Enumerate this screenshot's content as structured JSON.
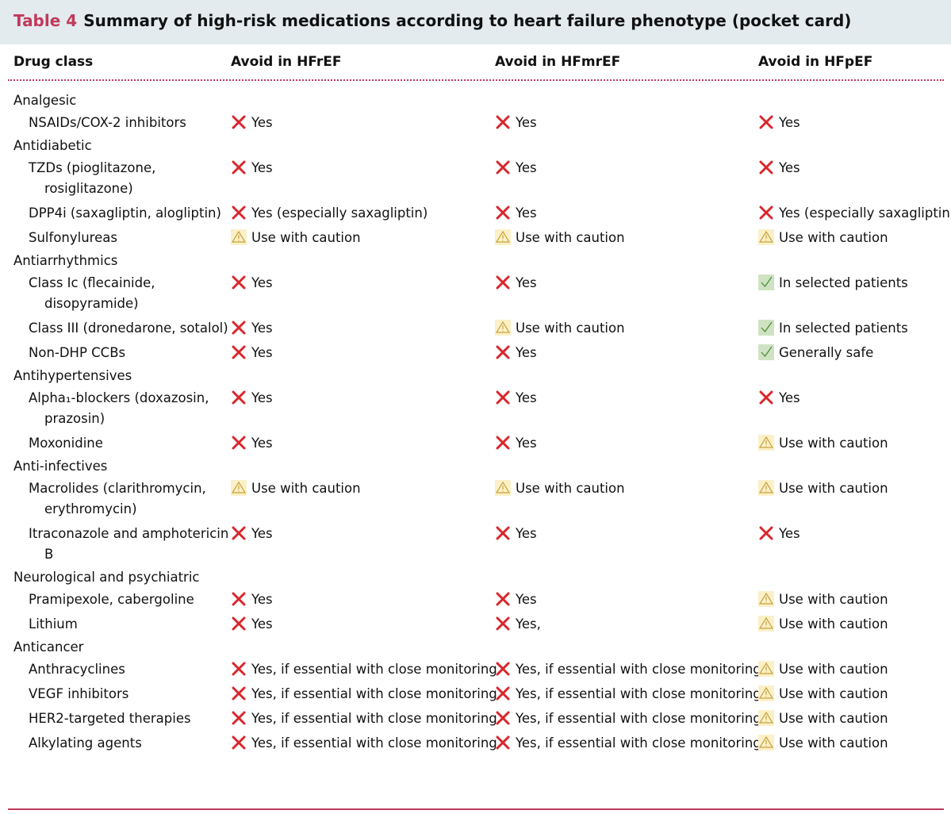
{
  "title": {
    "label": "Table 4",
    "text": "Summary of high-risk medications according to heart failure phenotype (pocket card)"
  },
  "header": [
    "Drug class",
    "Avoid in HFrEF",
    "Avoid in HFmrEF",
    "Avoid in HFpEF"
  ],
  "groups": [
    {
      "name": "Analgesic",
      "rows": [
        [
          "NSAIDs/COX-2 inhibitors",
          "Yes",
          "Yes",
          "Yes"
        ]
      ]
    },
    {
      "name": "Antidiabetic",
      "rows": [
        [
          "TZDs (pioglitazone, rosiglitazone)",
          "Yes",
          "Yes",
          "Yes"
        ],
        [
          "DPP4i (saxagliptin, alogliptin)",
          "Yes (especially saxagliptin)",
          "Yes",
          "Yes (especially saxagliptin)"
        ],
        [
          "Sulfonylureas",
          "Use with caution",
          "Use with caution",
          "Use with caution"
        ]
      ]
    },
    {
      "name": "Antiarrhythmics",
      "rows": [
        [
          "Class Ic (flecainide, disopyramide)",
          "Yes",
          "Yes",
          "In selected patients"
        ],
        [
          "Class III (dronedarone, sotalol)",
          "Yes",
          "Use with caution",
          "In selected patients"
        ],
        [
          "Non-DHP CCBs",
          "Yes",
          "Yes",
          "Generally safe"
        ]
      ]
    },
    {
      "name": "Antihypertensives",
      "rows": [
        [
          "Alpha₁-blockers (doxazosin, prazosin)",
          "Yes",
          "Yes",
          "Yes"
        ],
        [
          "Moxonidine",
          "Yes",
          "Yes",
          "Use with caution"
        ]
      ]
    },
    {
      "name": "Anti-infectives",
      "rows": [
        [
          "Macrolides (clarithromycin, erythromycin)",
          "Use with caution",
          "Use with caution",
          "Use with caution"
        ],
        [
          "Itraconazole and amphotericin B",
          "Yes",
          "Yes",
          "Yes"
        ]
      ]
    },
    {
      "name": "Neurological and psychiatric",
      "rows": [
        [
          "Pramipexole, cabergoline",
          "Yes",
          "Yes",
          "Use with caution"
        ],
        [
          "Lithium",
          "Yes",
          "Yes,",
          "Use with caution"
        ]
      ]
    },
    {
      "name": "Anticancer",
      "rows": [
        [
          "Anthracyclines",
          "Yes, if essential with close monitoring",
          "Yes, if essential with close monitoring",
          "Use with caution"
        ],
        [
          "VEGF inhibitors",
          "Yes, if essential with close monitoring",
          "Yes, if essential with close monitoring",
          "Use with caution"
        ],
        [
          "HER2-targeted therapies",
          "Yes, if essential with close monitoring",
          "Yes, if essential with close monitoring",
          "Use with caution"
        ],
        [
          "Alkylating agents",
          "Yes, if essential with close monitoring",
          "Yes, if essential with close monitoring",
          "Use with caution"
        ]
      ]
    }
  ]
}
